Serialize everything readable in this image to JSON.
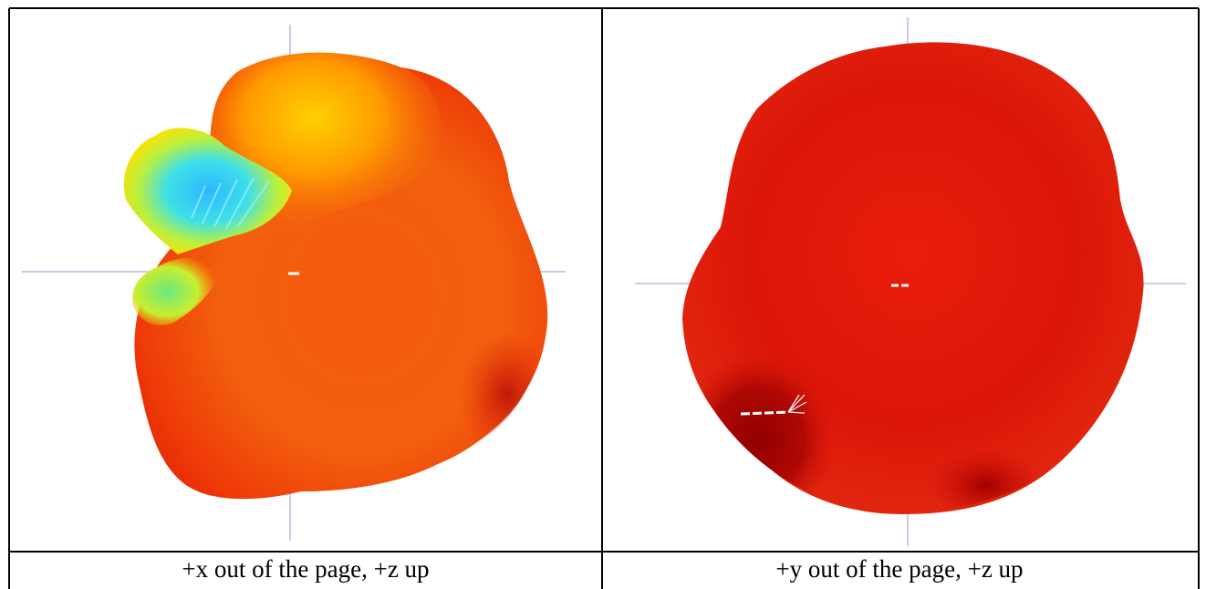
{
  "panels": [
    {
      "caption": "+x out of the page, +z up",
      "view_axis": "+x",
      "up_axis": "+z",
      "dominant_colors": [
        "#f06010",
        "#ff8a00",
        "#ffee00",
        "#a0ff50",
        "#2bd4ff",
        "#a00000"
      ]
    },
    {
      "caption": "+y out of the page, +z up",
      "view_axis": "+y",
      "up_axis": "+z",
      "dominant_colors": [
        "#e0150a",
        "#c80a06",
        "#a00000",
        "#ff2a10"
      ]
    }
  ],
  "colors": {
    "border": "#000000",
    "axis_lines": "#b8bcdc",
    "background": "#ffffff"
  }
}
